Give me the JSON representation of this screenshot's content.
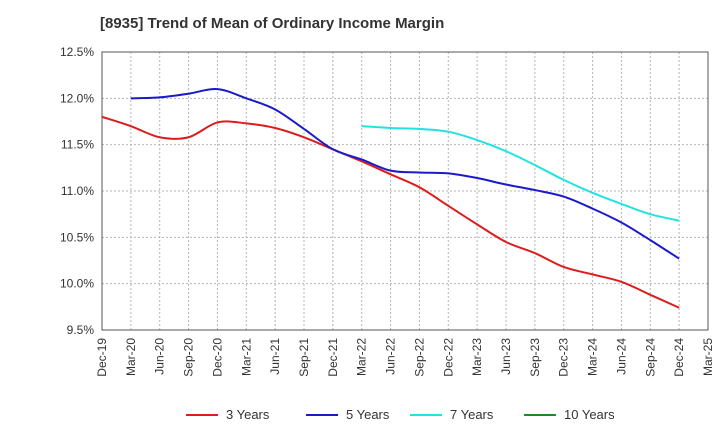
{
  "chart_data": {
    "type": "line",
    "title": "[8935]  Trend of Mean of Ordinary Income Margin",
    "xlabel": "",
    "ylabel": "",
    "ylim": [
      9.5,
      12.5
    ],
    "y_ticks": [
      "12.5%",
      "12.0%",
      "11.5%",
      "11.0%",
      "10.5%",
      "10.0%",
      "9.5%"
    ],
    "y_tick_values": [
      12.5,
      12.0,
      11.5,
      11.0,
      10.5,
      10.0,
      9.5
    ],
    "categories": [
      "Dec-19",
      "Mar-20",
      "Jun-20",
      "Sep-20",
      "Dec-20",
      "Mar-21",
      "Jun-21",
      "Sep-21",
      "Dec-21",
      "Mar-22",
      "Jun-22",
      "Sep-22",
      "Dec-22",
      "Mar-23",
      "Jun-23",
      "Sep-23",
      "Dec-23",
      "Mar-24",
      "Jun-24",
      "Sep-24",
      "Dec-24",
      "Mar-25"
    ],
    "grid": true,
    "legend_position": "bottom",
    "series": [
      {
        "name": "3 Years",
        "color": "#dd1c1c",
        "values": [
          11.8,
          11.7,
          11.58,
          11.58,
          11.74,
          11.73,
          11.68,
          11.58,
          11.45,
          11.32,
          11.18,
          11.04,
          10.84,
          10.64,
          10.45,
          10.33,
          10.18,
          10.1,
          10.02,
          9.88,
          9.74,
          null
        ]
      },
      {
        "name": "5 Years",
        "color": "#1a1acc",
        "values": [
          null,
          12.0,
          12.01,
          12.05,
          12.1,
          12.0,
          11.88,
          11.67,
          11.45,
          11.34,
          11.22,
          11.2,
          11.19,
          11.14,
          11.07,
          11.01,
          10.94,
          10.81,
          10.66,
          10.47,
          10.27,
          null
        ]
      },
      {
        "name": "7 Years",
        "color": "#22e2e2",
        "values": [
          null,
          null,
          null,
          null,
          null,
          null,
          null,
          null,
          null,
          11.7,
          11.68,
          11.67,
          11.64,
          11.55,
          11.43,
          11.28,
          11.12,
          10.98,
          10.86,
          10.75,
          10.68,
          null
        ]
      },
      {
        "name": "10 Years",
        "color": "#1f8a1f",
        "values": [
          null,
          null,
          null,
          null,
          null,
          null,
          null,
          null,
          null,
          null,
          null,
          null,
          null,
          null,
          null,
          null,
          null,
          null,
          null,
          null,
          null,
          null
        ]
      }
    ]
  }
}
